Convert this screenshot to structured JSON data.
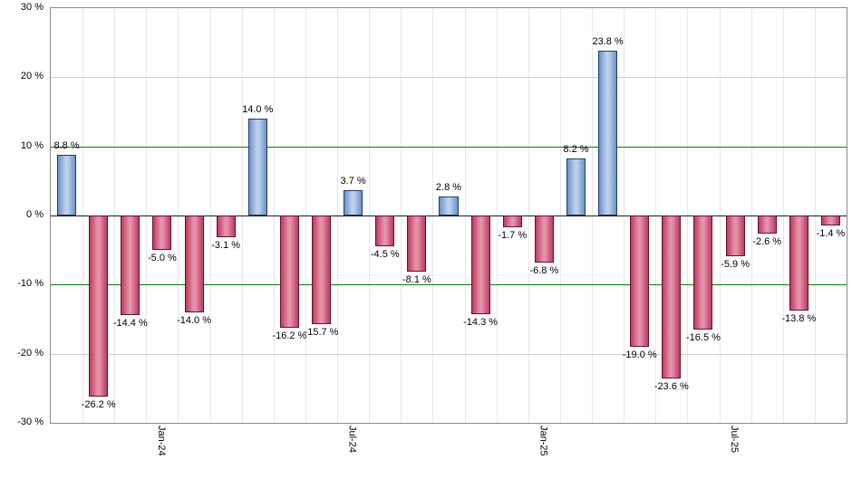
{
  "chart_data": {
    "type": "bar",
    "title": "",
    "xlabel": "",
    "ylabel": "",
    "ylim": [
      -30,
      30
    ],
    "grid": true,
    "legend": false,
    "yticks": [
      {
        "value": 30,
        "label": "30 %"
      },
      {
        "value": 20,
        "label": "20 %"
      },
      {
        "value": 10,
        "label": "10 %"
      },
      {
        "value": 0,
        "label": "0 %"
      },
      {
        "value": -10,
        "label": "-10 %"
      },
      {
        "value": -20,
        "label": "-20 %"
      },
      {
        "value": -30,
        "label": "-30 %"
      }
    ],
    "green_reference_lines": [
      10,
      -10
    ],
    "xticks": [
      {
        "index": 3,
        "label": "Jan-24"
      },
      {
        "index": 9,
        "label": "Jul-24"
      },
      {
        "index": 15,
        "label": "Jan-25"
      },
      {
        "index": 21,
        "label": "Jul-25"
      }
    ],
    "bars": [
      {
        "value": 8.8,
        "label": "8.8 %"
      },
      {
        "value": -26.2,
        "label": "-26.2 %"
      },
      {
        "value": -14.4,
        "label": "-14.4 %"
      },
      {
        "value": -5.0,
        "label": "-5.0 %"
      },
      {
        "value": -14.0,
        "label": "-14.0 %"
      },
      {
        "value": -3.1,
        "label": "-3.1 %"
      },
      {
        "value": 14.0,
        "label": "14.0 %"
      },
      {
        "value": -16.2,
        "label": "-16.2 %"
      },
      {
        "value": -15.7,
        "label": "-15.7 %"
      },
      {
        "value": 3.7,
        "label": "3.7 %"
      },
      {
        "value": -4.5,
        "label": "-4.5 %"
      },
      {
        "value": -8.1,
        "label": "-8.1 %"
      },
      {
        "value": 2.8,
        "label": "2.8 %"
      },
      {
        "value": -14.3,
        "label": "-14.3 %"
      },
      {
        "value": -1.7,
        "label": "-1.7 %"
      },
      {
        "value": -6.8,
        "label": "-6.8 %"
      },
      {
        "value": 8.2,
        "label": "8.2 %"
      },
      {
        "value": 23.8,
        "label": "23.8 %"
      },
      {
        "value": -19.0,
        "label": "-19.0 %"
      },
      {
        "value": -23.6,
        "label": "-23.6 %"
      },
      {
        "value": -16.5,
        "label": "-16.5 %"
      },
      {
        "value": -5.9,
        "label": "-5.9 %"
      },
      {
        "value": -2.6,
        "label": "-2.6 %"
      },
      {
        "value": -13.8,
        "label": "-13.8 %"
      },
      {
        "value": -1.4,
        "label": "-1.4 %"
      }
    ],
    "colors": {
      "positive_edge": "#6d92c8",
      "positive_center": "#bdd1ec",
      "positive_border": "#1c3e6e",
      "negative_edge": "#bf3a5e",
      "negative_center": "#e493aa",
      "negative_border": "#5c1430",
      "grid_line": "#cfcfcf",
      "vertical_grid_line": "#e7e7e7",
      "green_line": "#008000",
      "zero_line": "#1a1a1a",
      "background": "#ffffff"
    }
  }
}
